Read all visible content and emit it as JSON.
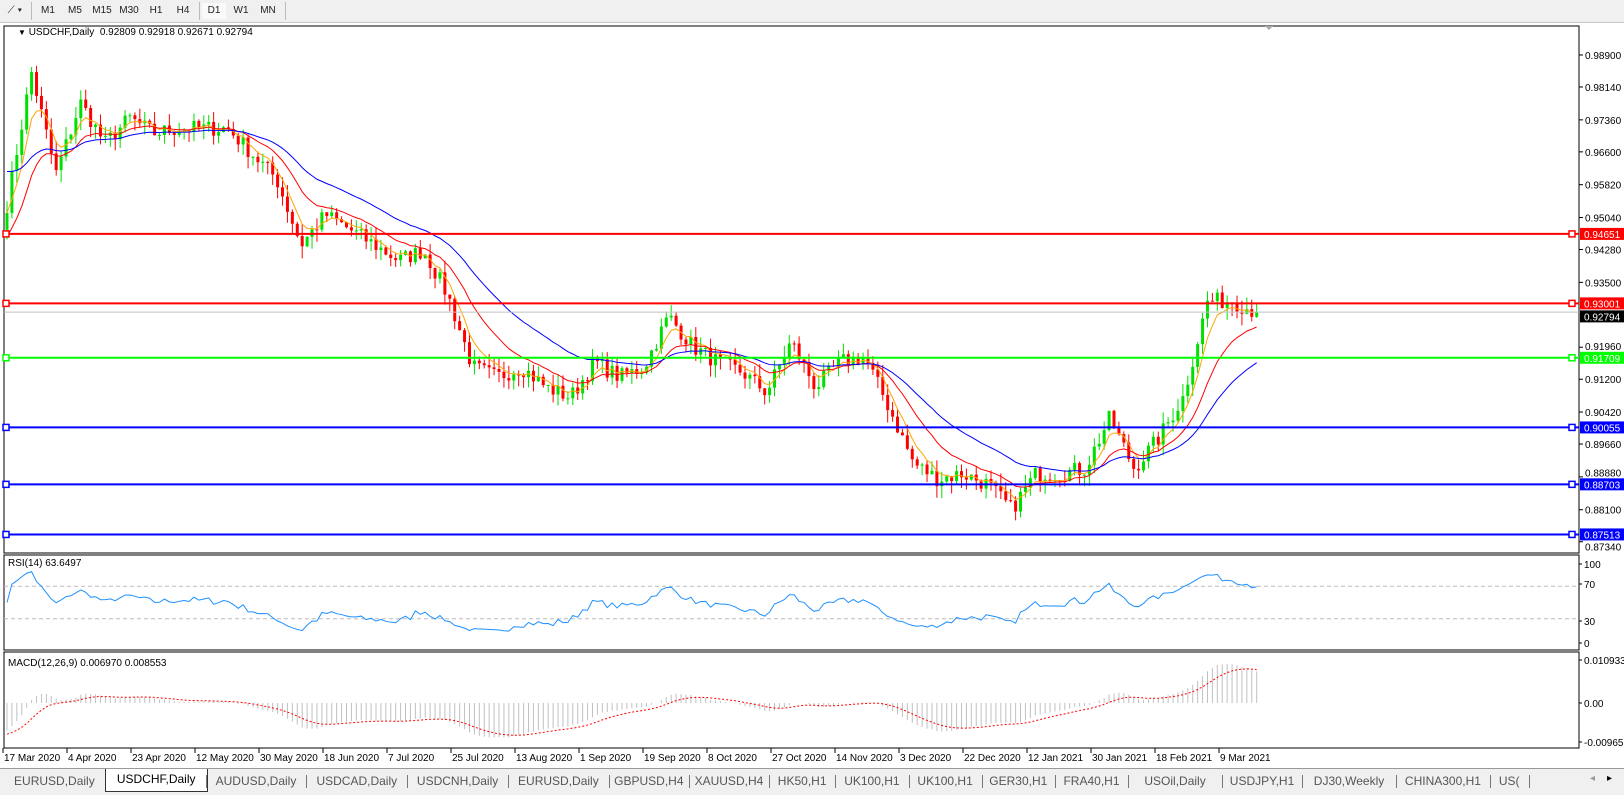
{
  "toolbar": {
    "timeframes": [
      "M1",
      "M5",
      "M15",
      "M30",
      "H1",
      "H4",
      "D1",
      "W1",
      "MN"
    ],
    "active": "D1"
  },
  "chart": {
    "symbol_label": "USDCHF,Daily",
    "ohlc": "0.92809 0.92918 0.92671 0.92794",
    "price_axis": [
      "0.98900",
      "0.98140",
      "0.97360",
      "0.96600",
      "0.95820",
      "0.95040",
      "0.94280",
      "0.93500",
      "0.91960",
      "0.91200",
      "0.90420",
      "0.89660",
      "0.88880",
      "0.88100",
      "0.87340"
    ],
    "levels": [
      {
        "price": 0.94651,
        "label": "0.94651",
        "color": "#ff0000"
      },
      {
        "price": 0.93001,
        "label": "0.93001",
        "color": "#ff0000"
      },
      {
        "price": 0.92794,
        "label": "0.92794",
        "color": "#c0c0c0",
        "bid": true
      },
      {
        "price": 0.91709,
        "label": "0.91709",
        "color": "#00ff00"
      },
      {
        "price": 0.90055,
        "label": "0.90055",
        "color": "#0000ff"
      },
      {
        "price": 0.88703,
        "label": "0.88703",
        "color": "#0000ff"
      },
      {
        "price": 0.87513,
        "label": "0.87513",
        "color": "#0000ff"
      }
    ],
    "weekly_closes": [
      0.9535,
      0.9849,
      0.9608,
      0.9777,
      0.968,
      0.974,
      0.9704,
      0.9716,
      0.9716,
      0.9716,
      0.9656,
      0.9596,
      0.9439,
      0.9511,
      0.9475,
      0.9439,
      0.9402,
      0.9427,
      0.9318,
      0.9149,
      0.9125,
      0.9149,
      0.9101,
      0.9077,
      0.9161,
      0.9125,
      0.9149,
      0.927,
      0.9197,
      0.9161,
      0.9137,
      0.9089,
      0.9209,
      0.9101,
      0.9161,
      0.9173,
      0.9052,
      0.892,
      0.8883,
      0.8896,
      0.8871,
      0.8811,
      0.8896,
      0.8896,
      0.8908,
      0.9028,
      0.8908,
      0.898,
      0.9077,
      0.9306,
      0.9306,
      0.9279
    ],
    "colors": {
      "bull": "#00e000",
      "bear": "#ff0000",
      "ma_fast": "#ffa500",
      "ma_mid": "#ff0000",
      "ma_slow": "#0000ff"
    },
    "dates": [
      "17 Mar 2020",
      "4 Apr 2020",
      "23 Apr 2020",
      "12 May 2020",
      "30 May 2020",
      "18 Jun 2020",
      "7 Jul 2020",
      "25 Jul 2020",
      "13 Aug 2020",
      "1 Sep 2020",
      "19 Sep 2020",
      "8 Oct 2020",
      "27 Oct 2020",
      "14 Nov 2020",
      "3 Dec 2020",
      "22 Dec 2020",
      "12 Jan 2021",
      "30 Jan 2021",
      "18 Feb 2021",
      "9 Mar 2021"
    ]
  },
  "rsi": {
    "label": "RSI(14) 63.6497",
    "axis": [
      "100",
      "70",
      "30",
      "0"
    ],
    "color": "#1e90ff"
  },
  "macd": {
    "label": "MACD(12,26,9) 0.006970 0.008553",
    "axis": [
      "0.010933",
      "0.00",
      "-0.009653"
    ]
  },
  "tabs": [
    "EURUSD,Daily",
    "USDCHF,Daily",
    "AUDUSD,Daily",
    "USDCAD,Daily",
    "USDCNH,Daily",
    "EURUSD,Daily",
    "GBPUSD,H4",
    "XAUUSD,H4",
    "HK50,H1",
    "UK100,H1",
    "UK100,H1",
    "GER30,H1",
    "FRA40,H1",
    "USOil,Daily",
    "USDJPY,H1",
    "DJ30,Weekly",
    "CHINA300,H1",
    "US("
  ],
  "active_tab": "USDCHF,Daily"
}
